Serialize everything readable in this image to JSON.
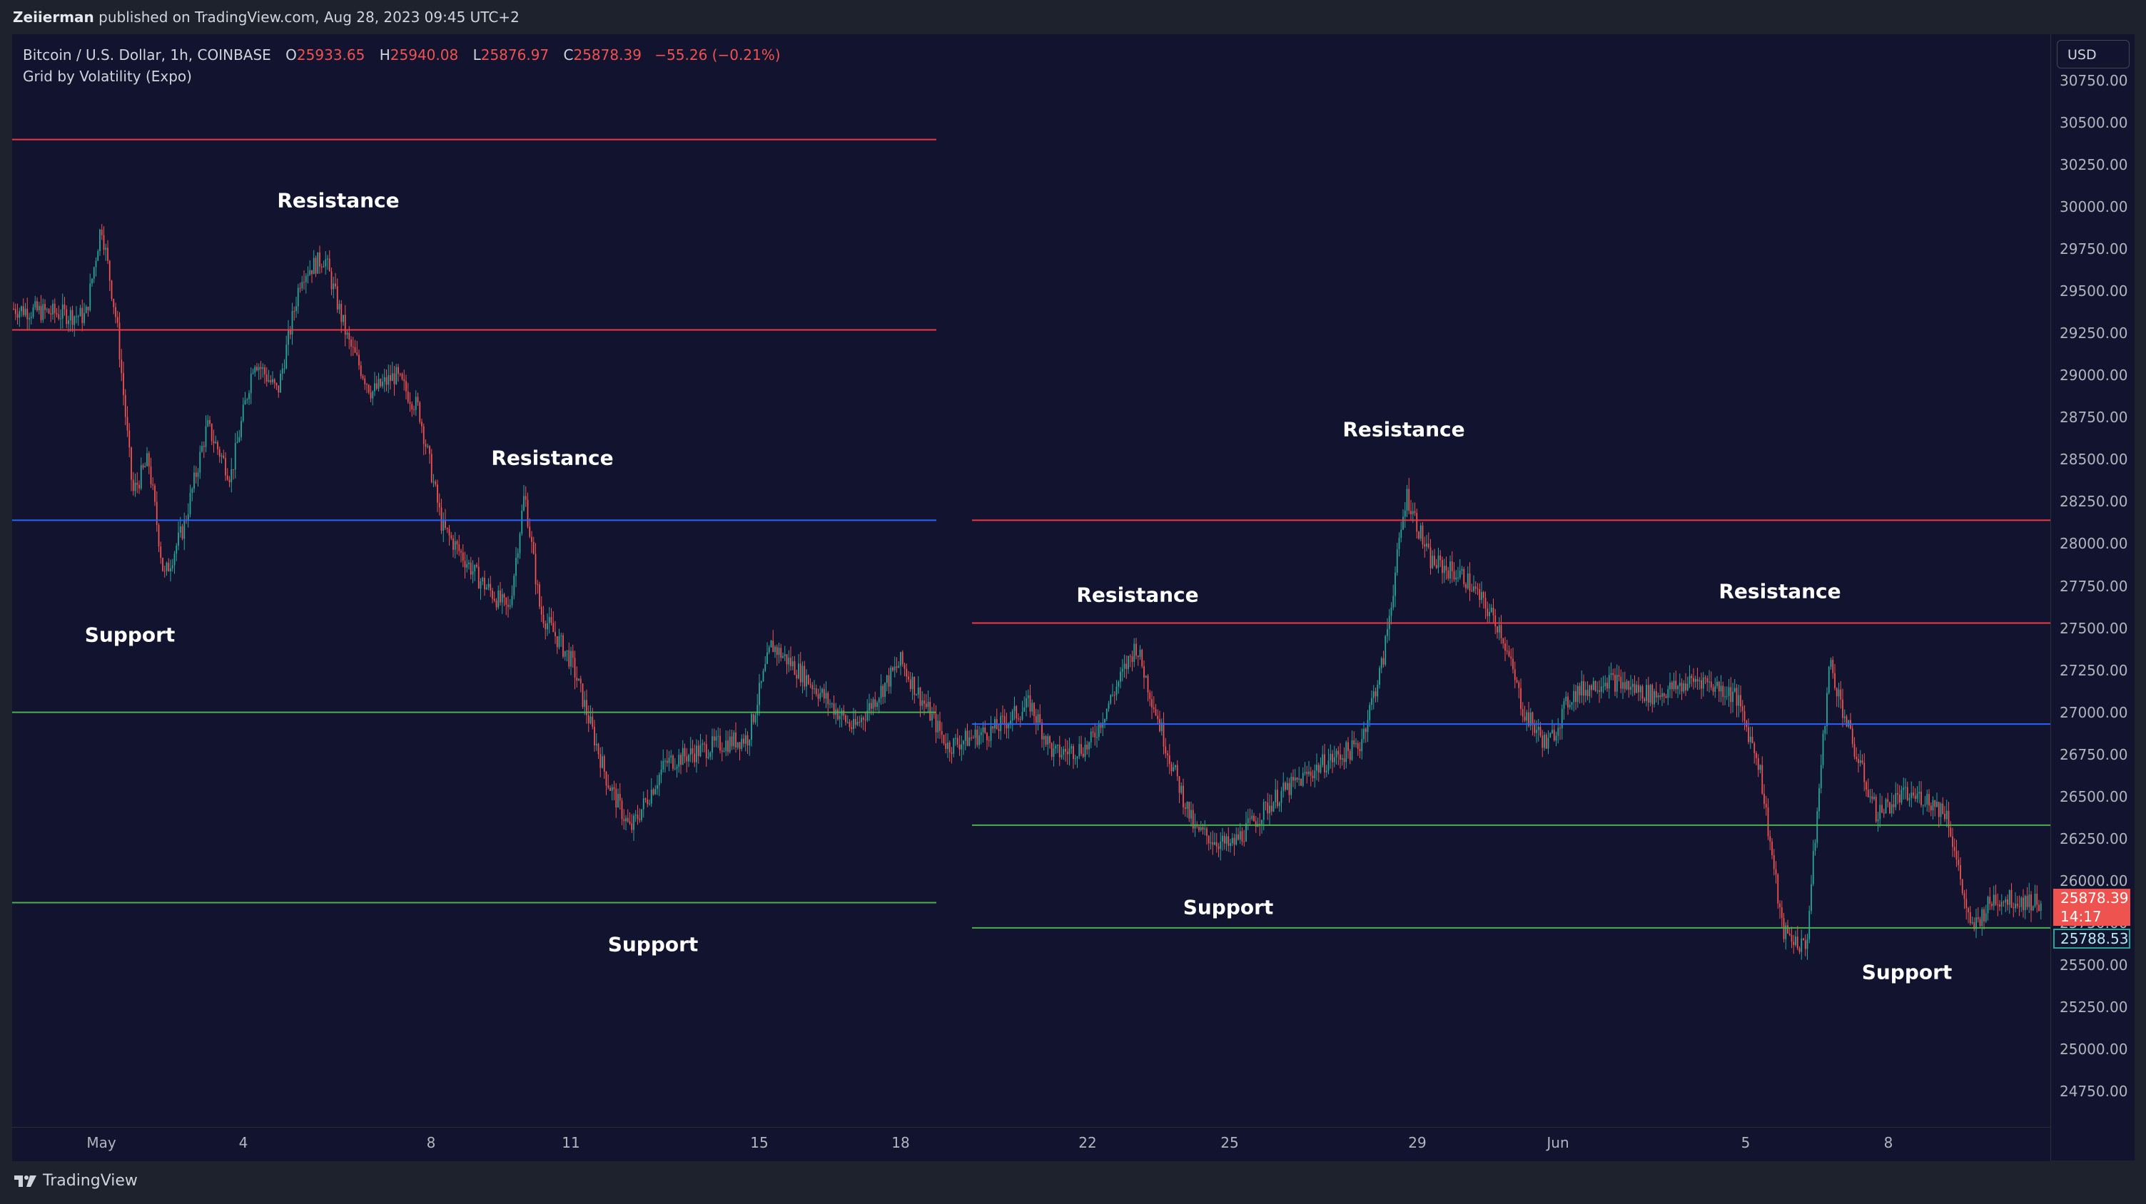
{
  "header": {
    "publisher": "Zeiierman",
    "published_text": "published on TradingView.com, Aug 28, 2023 09:45 UTC+2"
  },
  "legend": {
    "symbol": "Bitcoin / U.S. Dollar, 1h, COINBASE",
    "open_label": "O",
    "open": "25933.65",
    "high_label": "H",
    "high": "25940.08",
    "low_label": "L",
    "low": "25876.97",
    "close_label": "C",
    "close": "25878.39",
    "change": "−55.26 (−0.21%)",
    "indicator": "Grid by Volatility (Expo)"
  },
  "currency_button": "USD",
  "price_axis": {
    "ticks": [
      "30750.00",
      "30500.00",
      "30250.00",
      "30000.00",
      "29750.00",
      "29500.00",
      "29250.00",
      "29000.00",
      "28750.00",
      "28500.00",
      "28250.00",
      "28000.00",
      "27750.00",
      "27500.00",
      "27250.00",
      "27000.00",
      "26750.00",
      "26500.00",
      "26250.00",
      "26000.00",
      "25750.00",
      "25500.00",
      "25250.00",
      "25000.00",
      "24750.00"
    ],
    "last_price": "25878.39",
    "countdown": "14:17",
    "prev_price": "25788.53"
  },
  "time_axis": {
    "ticks": [
      "May",
      "4",
      "8",
      "11",
      "15",
      "18",
      "22",
      "25",
      "29",
      "Jun",
      "5",
      "8"
    ]
  },
  "annotations": [
    {
      "text": "Resistance"
    },
    {
      "text": "Resistance"
    },
    {
      "text": "Support"
    },
    {
      "text": "Support"
    },
    {
      "text": "Resistance"
    },
    {
      "text": "Resistance"
    },
    {
      "text": "Resistance"
    },
    {
      "text": "Support"
    },
    {
      "text": "Support"
    }
  ],
  "footer": {
    "brand": "TradingView"
  },
  "colors": {
    "background": "#12132e",
    "up_candle": "#26a69a",
    "down_candle": "#ef5350",
    "resistance_line": "#f23645",
    "mid_line": "#2962ff",
    "support_line": "#4caf50"
  },
  "chart_data": {
    "type": "candlestick",
    "symbol": "BTCUSD",
    "timeframe": "1h",
    "ylim": [
      24500,
      30900
    ],
    "y_ticks": [
      30750,
      30500,
      30250,
      30000,
      29750,
      29500,
      29250,
      29000,
      28750,
      28500,
      28250,
      28000,
      27750,
      27500,
      27250,
      27000,
      26750,
      26500,
      26250,
      26000,
      25750,
      25500,
      25250,
      25000,
      24750
    ],
    "x_ticks": [
      "May",
      "4",
      "8",
      "11",
      "15",
      "18",
      "22",
      "25",
      "29",
      "Jun",
      "5",
      "8"
    ],
    "last_price": 25878.39,
    "grid_segments": [
      {
        "start": "May 1",
        "end": "May 19",
        "levels": [
          {
            "price": 30400,
            "role": "resistance"
          },
          {
            "price": 29270,
            "role": "resistance"
          },
          {
            "price": 28140,
            "role": "mid"
          },
          {
            "price": 27000,
            "role": "support"
          },
          {
            "price": 25870,
            "role": "support"
          }
        ]
      },
      {
        "start": "May 19",
        "end": "Jun 11",
        "levels": [
          {
            "price": 28140,
            "role": "resistance"
          },
          {
            "price": 27530,
            "role": "resistance"
          },
          {
            "price": 26930,
            "role": "mid"
          },
          {
            "price": 26330,
            "role": "support"
          },
          {
            "price": 25720,
            "role": "support"
          }
        ]
      }
    ],
    "price_path": [
      {
        "t": "Apr 30",
        "price": 29400
      },
      {
        "t": "May 1",
        "price": 29350
      },
      {
        "t": "May 1",
        "price": 29900
      },
      {
        "t": "May 1",
        "price": 29300
      },
      {
        "t": "May 2",
        "price": 28300
      },
      {
        "t": "May 2",
        "price": 28500
      },
      {
        "t": "May 2",
        "price": 27800
      },
      {
        "t": "May 3",
        "price": 28100
      },
      {
        "t": "May 3",
        "price": 28700
      },
      {
        "t": "May 4",
        "price": 28400
      },
      {
        "t": "May 4",
        "price": 29100
      },
      {
        "t": "May 5",
        "price": 28900
      },
      {
        "t": "May 5",
        "price": 29600
      },
      {
        "t": "May 6",
        "price": 29700
      },
      {
        "t": "May 6",
        "price": 29200
      },
      {
        "t": "May 7",
        "price": 28900
      },
      {
        "t": "May 7",
        "price": 29000
      },
      {
        "t": "May 8",
        "price": 28800
      },
      {
        "t": "May 8",
        "price": 28100
      },
      {
        "t": "May 9",
        "price": 27800
      },
      {
        "t": "May 10",
        "price": 27600
      },
      {
        "t": "May 10",
        "price": 28300
      },
      {
        "t": "May 10",
        "price": 27600
      },
      {
        "t": "May 11",
        "price": 27300
      },
      {
        "t": "May 12",
        "price": 26600
      },
      {
        "t": "May 12",
        "price": 26300
      },
      {
        "t": "May 13",
        "price": 26700
      },
      {
        "t": "May 14",
        "price": 26800
      },
      {
        "t": "May 15",
        "price": 26850
      },
      {
        "t": "May 15",
        "price": 27400
      },
      {
        "t": "May 16",
        "price": 27200
      },
      {
        "t": "May 17",
        "price": 26900
      },
      {
        "t": "May 18",
        "price": 27300
      },
      {
        "t": "May 19",
        "price": 26800
      },
      {
        "t": "May 20",
        "price": 26900
      },
      {
        "t": "May 21",
        "price": 27050
      },
      {
        "t": "May 21",
        "price": 26750
      },
      {
        "t": "May 22",
        "price": 26800
      },
      {
        "t": "May 23",
        "price": 27400
      },
      {
        "t": "May 24",
        "price": 26700
      },
      {
        "t": "May 24",
        "price": 26300
      },
      {
        "t": "May 25",
        "price": 26200
      },
      {
        "t": "May 26",
        "price": 26500
      },
      {
        "t": "May 27",
        "price": 26700
      },
      {
        "t": "May 28",
        "price": 26800
      },
      {
        "t": "May 28",
        "price": 27300
      },
      {
        "t": "May 29",
        "price": 28300
      },
      {
        "t": "May 29",
        "price": 27900
      },
      {
        "t": "May 30",
        "price": 27800
      },
      {
        "t": "May 31",
        "price": 27500
      },
      {
        "t": "May 31",
        "price": 27000
      },
      {
        "t": "Jun 1",
        "price": 26800
      },
      {
        "t": "Jun 1",
        "price": 27100
      },
      {
        "t": "Jun 2",
        "price": 27200
      },
      {
        "t": "Jun 3",
        "price": 27100
      },
      {
        "t": "Jun 4",
        "price": 27200
      },
      {
        "t": "Jun 5",
        "price": 27100
      },
      {
        "t": "Jun 5",
        "price": 26700
      },
      {
        "t": "Jun 6",
        "price": 25700
      },
      {
        "t": "Jun 6",
        "price": 25600
      },
      {
        "t": "Jun 7",
        "price": 27300
      },
      {
        "t": "Jun 7",
        "price": 26800
      },
      {
        "t": "Jun 8",
        "price": 26400
      },
      {
        "t": "Jun 8",
        "price": 26500
      },
      {
        "t": "Jun 9",
        "price": 26500
      },
      {
        "t": "Jun 9",
        "price": 26400
      },
      {
        "t": "Jun 10",
        "price": 25700
      },
      {
        "t": "Jun 10",
        "price": 25900
      },
      {
        "t": "Jun 11",
        "price": 25878
      }
    ]
  }
}
